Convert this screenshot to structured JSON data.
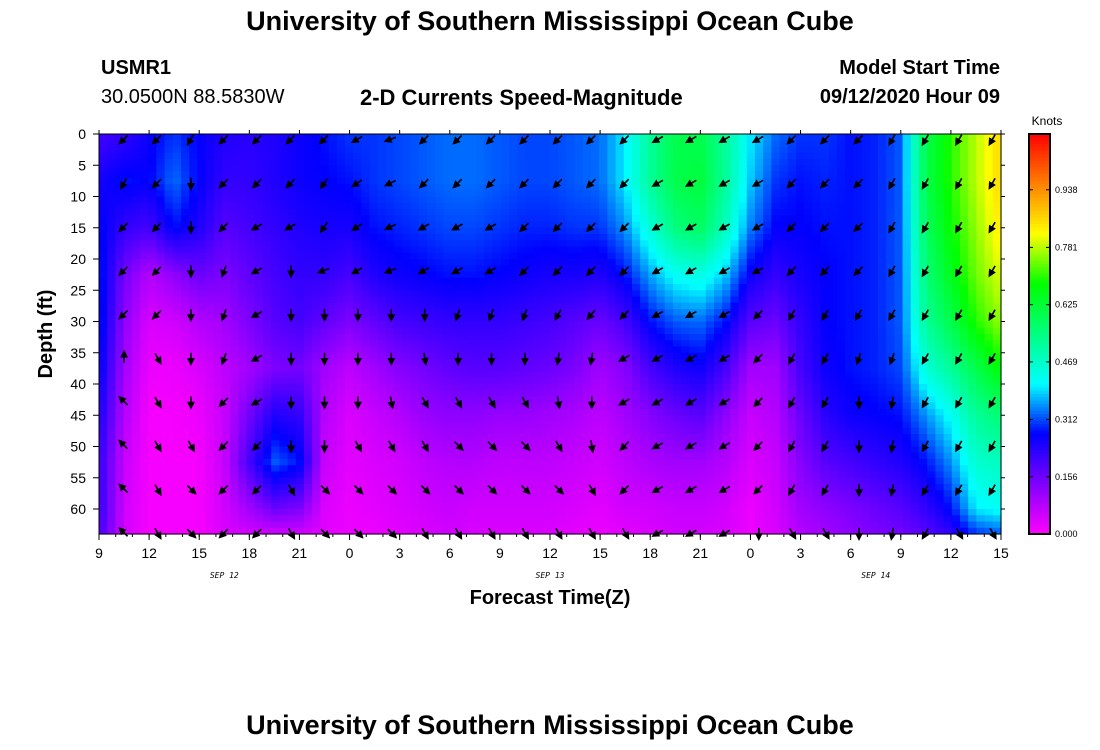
{
  "title_top": "University of Southern Mississippi Ocean Cube",
  "title_bottom": "University of Southern Mississippi Ocean Cube",
  "station": {
    "id": "USMR1",
    "coords": "30.0500N 88.5830W"
  },
  "model": {
    "label": "Model Start Time",
    "time": "09/12/2020 Hour 09"
  },
  "colors": {
    "arrow": "#000000",
    "colormap": [
      "#ff00ff",
      "#8000ff",
      "#0000ff",
      "#00ffff",
      "#00ff80",
      "#00ff00",
      "#ffff00",
      "#ff8000",
      "#ff0000"
    ]
  },
  "chart_data": {
    "type": "heatmap",
    "title": "2-D Currents Speed-Magnitude",
    "xlabel": "Forecast Time(Z)",
    "ylabel": "Depth (ft)",
    "x_tick_labels": [
      "9",
      "12",
      "15",
      "18",
      "21",
      "0",
      "3",
      "6",
      "9",
      "12",
      "15",
      "18",
      "21",
      "0",
      "3",
      "6",
      "9",
      "12",
      "15"
    ],
    "x_hours_from_start": [
      0,
      3,
      6,
      9,
      12,
      15,
      18,
      21,
      24,
      27,
      30,
      33,
      36,
      39,
      42,
      45,
      48,
      51,
      54
    ],
    "date_labels": [
      {
        "label": "SEP 12",
        "hours_from_start": 7.5
      },
      {
        "label": "SEP 13",
        "hours_from_start": 27
      },
      {
        "label": "SEP 14",
        "hours_from_start": 46.5
      }
    ],
    "y_ticks": [
      0,
      5,
      10,
      15,
      20,
      25,
      30,
      35,
      40,
      45,
      50,
      55,
      60
    ],
    "ylim": [
      0,
      64
    ],
    "xlim": [
      0,
      54
    ],
    "colorbar": {
      "title": "Knots",
      "ticks": [
        "0.938",
        "0.781",
        "0.625",
        "0.469",
        "0.312",
        "0.156",
        "0.000"
      ],
      "range": [
        0,
        1.09
      ]
    },
    "column_hours": [
      0,
      1.5,
      3,
      4.5,
      6,
      7.5,
      9,
      10.5,
      12,
      13.5,
      15,
      16.5,
      18,
      19.5,
      21,
      22.5,
      24,
      25.5,
      27,
      28.5,
      30,
      31.5,
      33,
      34.5,
      36,
      37.5,
      39,
      40.5,
      42,
      43.5,
      45,
      46.5,
      48,
      49.5,
      51,
      52.5,
      54
    ],
    "depth_levels": [
      0,
      7.5,
      15,
      22.5,
      30,
      37.5,
      45,
      52.5,
      60,
      64
    ],
    "speed_knots": [
      [
        0.2,
        0.25,
        0.28,
        0.3,
        0.3,
        0.28,
        0.25,
        0.22,
        0.22,
        0.2
      ],
      [
        0.22,
        0.28,
        0.22,
        0.15,
        0.12,
        0.1,
        0.08,
        0.06,
        0.05,
        0.05
      ],
      [
        0.26,
        0.27,
        0.2,
        0.08,
        0.04,
        0.02,
        0.01,
        0.01,
        0.01,
        0.01
      ],
      [
        0.3,
        0.33,
        0.28,
        0.12,
        0.05,
        0.02,
        0.01,
        0.01,
        0.01,
        0.01
      ],
      [
        0.27,
        0.27,
        0.24,
        0.16,
        0.08,
        0.04,
        0.02,
        0.01,
        0.01,
        0.01
      ],
      [
        0.24,
        0.22,
        0.18,
        0.14,
        0.1,
        0.07,
        0.06,
        0.06,
        0.05,
        0.04
      ],
      [
        0.23,
        0.22,
        0.2,
        0.17,
        0.14,
        0.1,
        0.15,
        0.2,
        0.1,
        0.05
      ],
      [
        0.24,
        0.24,
        0.22,
        0.2,
        0.18,
        0.14,
        0.24,
        0.32,
        0.16,
        0.05
      ],
      [
        0.26,
        0.26,
        0.24,
        0.22,
        0.2,
        0.15,
        0.22,
        0.28,
        0.14,
        0.05
      ],
      [
        0.28,
        0.27,
        0.25,
        0.22,
        0.17,
        0.1,
        0.08,
        0.06,
        0.04,
        0.03
      ],
      [
        0.3,
        0.28,
        0.25,
        0.2,
        0.14,
        0.07,
        0.04,
        0.03,
        0.02,
        0.02
      ],
      [
        0.3,
        0.3,
        0.28,
        0.24,
        0.17,
        0.1,
        0.06,
        0.04,
        0.03,
        0.02
      ],
      [
        0.31,
        0.31,
        0.29,
        0.26,
        0.2,
        0.13,
        0.08,
        0.05,
        0.04,
        0.03
      ],
      [
        0.32,
        0.32,
        0.3,
        0.27,
        0.21,
        0.15,
        0.11,
        0.07,
        0.05,
        0.04
      ],
      [
        0.33,
        0.33,
        0.31,
        0.28,
        0.22,
        0.17,
        0.12,
        0.08,
        0.06,
        0.05
      ],
      [
        0.33,
        0.33,
        0.31,
        0.28,
        0.22,
        0.18,
        0.12,
        0.08,
        0.05,
        0.04
      ],
      [
        0.32,
        0.32,
        0.3,
        0.27,
        0.22,
        0.18,
        0.11,
        0.07,
        0.05,
        0.04
      ],
      [
        0.31,
        0.31,
        0.29,
        0.26,
        0.21,
        0.17,
        0.11,
        0.07,
        0.05,
        0.04
      ],
      [
        0.31,
        0.31,
        0.29,
        0.25,
        0.2,
        0.16,
        0.1,
        0.07,
        0.05,
        0.04
      ],
      [
        0.32,
        0.32,
        0.3,
        0.25,
        0.18,
        0.14,
        0.09,
        0.06,
        0.04,
        0.03
      ],
      [
        0.33,
        0.33,
        0.3,
        0.24,
        0.16,
        0.1,
        0.07,
        0.05,
        0.03,
        0.02
      ],
      [
        0.4,
        0.4,
        0.35,
        0.28,
        0.2,
        0.13,
        0.1,
        0.07,
        0.05,
        0.03
      ],
      [
        0.52,
        0.52,
        0.45,
        0.36,
        0.28,
        0.2,
        0.13,
        0.09,
        0.05,
        0.04
      ],
      [
        0.6,
        0.6,
        0.55,
        0.42,
        0.32,
        0.24,
        0.16,
        0.1,
        0.06,
        0.05
      ],
      [
        0.6,
        0.62,
        0.58,
        0.44,
        0.33,
        0.26,
        0.18,
        0.1,
        0.06,
        0.05
      ],
      [
        0.52,
        0.52,
        0.48,
        0.38,
        0.28,
        0.2,
        0.12,
        0.08,
        0.05,
        0.04
      ],
      [
        0.4,
        0.38,
        0.34,
        0.26,
        0.18,
        0.1,
        0.06,
        0.04,
        0.02,
        0.02
      ],
      [
        0.33,
        0.3,
        0.27,
        0.22,
        0.16,
        0.1,
        0.08,
        0.06,
        0.05,
        0.04
      ],
      [
        0.3,
        0.28,
        0.27,
        0.25,
        0.22,
        0.2,
        0.16,
        0.13,
        0.1,
        0.08
      ],
      [
        0.3,
        0.29,
        0.28,
        0.27,
        0.27,
        0.26,
        0.23,
        0.18,
        0.12,
        0.1
      ],
      [
        0.28,
        0.28,
        0.28,
        0.28,
        0.28,
        0.28,
        0.26,
        0.2,
        0.14,
        0.12
      ],
      [
        0.29,
        0.29,
        0.29,
        0.29,
        0.29,
        0.29,
        0.27,
        0.22,
        0.16,
        0.14
      ],
      [
        0.32,
        0.32,
        0.32,
        0.32,
        0.32,
        0.31,
        0.28,
        0.24,
        0.18,
        0.15
      ],
      [
        0.6,
        0.6,
        0.58,
        0.55,
        0.52,
        0.45,
        0.35,
        0.28,
        0.22,
        0.18
      ],
      [
        0.7,
        0.7,
        0.68,
        0.65,
        0.6,
        0.52,
        0.42,
        0.35,
        0.28,
        0.22
      ],
      [
        0.78,
        0.78,
        0.76,
        0.74,
        0.7,
        0.6,
        0.52,
        0.46,
        0.4,
        0.3
      ],
      [
        0.86,
        0.86,
        0.84,
        0.8,
        0.76,
        0.68,
        0.56,
        0.48,
        0.42,
        0.32
      ]
    ],
    "arrow_hours": [
      1.5,
      3.5,
      5.5,
      7.5,
      9.5,
      11.5,
      13.5,
      15.5,
      17.5,
      19.5,
      21.5,
      23.5,
      25.5,
      27.5,
      29.5,
      31.5,
      33.5,
      35.5,
      37.5,
      39.5,
      41.5,
      43.5,
      45.5,
      47.5,
      49.5,
      51.5,
      53.5
    ],
    "arrow_depths": [
      0,
      7,
      14,
      21,
      28,
      35,
      42,
      49,
      56,
      63
    ],
    "arrow_directions_deg": [
      [
        225,
        240,
        225,
        225,
        225,
        90,
        135,
        135,
        135,
        135
      ],
      [
        225,
        225,
        225,
        225,
        225,
        300,
        300,
        300,
        300,
        300
      ],
      [
        240,
        270,
        270,
        270,
        270,
        270,
        270,
        300,
        315,
        315
      ],
      [
        225,
        225,
        225,
        250,
        250,
        250,
        225,
        225,
        225,
        225
      ],
      [
        225,
        225,
        210,
        210,
        210,
        210,
        210,
        225,
        225,
        225
      ],
      [
        225,
        225,
        210,
        270,
        270,
        270,
        270,
        270,
        300,
        300
      ],
      [
        225,
        235,
        235,
        200,
        270,
        270,
        270,
        270,
        315,
        315
      ],
      [
        210,
        215,
        215,
        210,
        270,
        270,
        270,
        300,
        315,
        315
      ],
      [
        200,
        205,
        205,
        200,
        270,
        270,
        280,
        300,
        315,
        315
      ],
      [
        225,
        225,
        210,
        210,
        270,
        280,
        300,
        300,
        315,
        300
      ],
      [
        225,
        225,
        210,
        210,
        250,
        270,
        300,
        315,
        315,
        300
      ],
      [
        225,
        225,
        210,
        210,
        250,
        270,
        300,
        315,
        315,
        300
      ],
      [
        225,
        225,
        225,
        225,
        250,
        270,
        300,
        315,
        315,
        300
      ],
      [
        225,
        225,
        225,
        225,
        240,
        260,
        280,
        300,
        315,
        300
      ],
      [
        225,
        225,
        225,
        225,
        230,
        260,
        270,
        280,
        300,
        300
      ],
      [
        225,
        225,
        225,
        225,
        225,
        210,
        210,
        225,
        225,
        300
      ],
      [
        210,
        210,
        210,
        210,
        210,
        210,
        210,
        210,
        210,
        210
      ],
      [
        210,
        210,
        210,
        210,
        210,
        210,
        210,
        210,
        210,
        210
      ],
      [
        210,
        210,
        210,
        210,
        210,
        210,
        210,
        210,
        210,
        210
      ],
      [
        210,
        210,
        210,
        210,
        225,
        225,
        225,
        225,
        225,
        270
      ],
      [
        225,
        225,
        225,
        225,
        240,
        240,
        240,
        240,
        240,
        300
      ],
      [
        225,
        225,
        225,
        225,
        240,
        240,
        240,
        240,
        240,
        300
      ],
      [
        225,
        225,
        225,
        225,
        240,
        250,
        270,
        270,
        270,
        270
      ],
      [
        240,
        240,
        240,
        240,
        240,
        250,
        260,
        260,
        260,
        260
      ],
      [
        240,
        240,
        240,
        240,
        240,
        240,
        240,
        240,
        240,
        240
      ],
      [
        240,
        240,
        240,
        240,
        240,
        240,
        240,
        240,
        240,
        300
      ],
      [
        240,
        240,
        240,
        240,
        240,
        240,
        240,
        240,
        240,
        300
      ]
    ]
  }
}
